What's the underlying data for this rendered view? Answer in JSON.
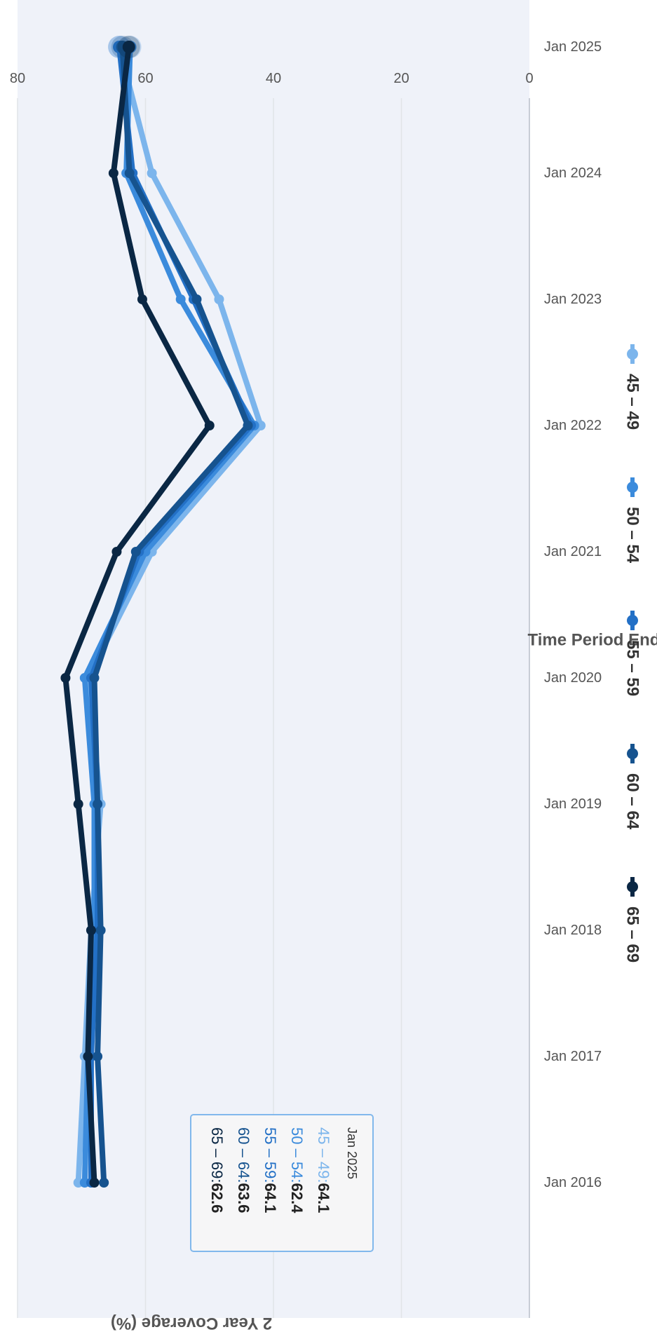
{
  "chart_data": {
    "type": "line",
    "orientation": "rotated 90deg clockwise (time runs top to bottom)",
    "xlabel": "Time Period End",
    "ylabel": "2 Year Coverage (%)",
    "categories": [
      "Jan 2016",
      "Jan 2017",
      "Jan 2018",
      "Jan 2019",
      "Jan 2020",
      "Jan 2021",
      "Jan 2022",
      "Jan 2023",
      "Jan 2024",
      "Jan 2025"
    ],
    "ylim": [
      0,
      80
    ],
    "yticks": [
      "0",
      "20",
      "40",
      "60",
      "80"
    ],
    "grid": true,
    "highlighted_category": "Jan 2025",
    "legend_position": "bottom",
    "series": [
      {
        "name": "45 – 49",
        "color": "#7cb5ec",
        "values": [
          70.5,
          69.5,
          68.5,
          67.0,
          69.0,
          59.0,
          42.0,
          48.5,
          59.0,
          64.1
        ]
      },
      {
        "name": "50 – 54",
        "color": "#3b8bdc",
        "values": [
          69.5,
          69.0,
          68.0,
          68.0,
          69.5,
          60.0,
          43.0,
          54.5,
          63.0,
          62.4
        ]
      },
      {
        "name": "55 – 59",
        "color": "#2370c6",
        "values": [
          68.5,
          68.5,
          67.5,
          67.5,
          68.5,
          61.0,
          43.5,
          52.5,
          62.0,
          64.1
        ]
      },
      {
        "name": "60 – 64",
        "color": "#16538f",
        "values": [
          66.5,
          67.5,
          67.0,
          67.5,
          68.0,
          61.5,
          44.0,
          52.0,
          62.5,
          63.6
        ]
      },
      {
        "name": "65 – 69",
        "color": "#0a2744",
        "values": [
          68.0,
          69.0,
          68.5,
          70.5,
          72.5,
          64.5,
          50.0,
          60.5,
          65.0,
          62.6
        ]
      }
    ],
    "tooltip": {
      "title": "Jan 2025",
      "rows": [
        {
          "label": "45 – 49:",
          "value": "64.1"
        },
        {
          "label": "50 – 54:",
          "value": "62.4"
        },
        {
          "label": "55 – 59:",
          "value": "64.1"
        },
        {
          "label": "60 – 64:",
          "value": "63.6"
        },
        {
          "label": "65 – 69:",
          "value": "62.6"
        }
      ]
    }
  }
}
